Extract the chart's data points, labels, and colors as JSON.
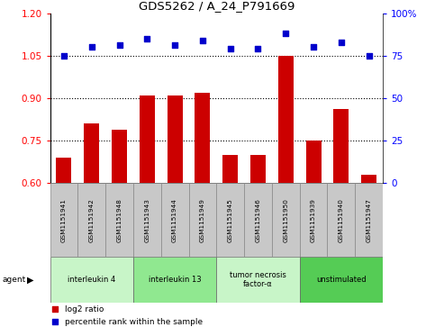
{
  "title": "GDS5262 / A_24_P791669",
  "samples": [
    "GSM1151941",
    "GSM1151942",
    "GSM1151948",
    "GSM1151943",
    "GSM1151944",
    "GSM1151949",
    "GSM1151945",
    "GSM1151946",
    "GSM1151950",
    "GSM1151939",
    "GSM1151940",
    "GSM1151947"
  ],
  "log2_ratio": [
    0.69,
    0.81,
    0.79,
    0.91,
    0.91,
    0.92,
    0.7,
    0.7,
    1.05,
    0.75,
    0.86,
    0.63
  ],
  "percentile_rank": [
    75,
    80,
    81,
    85,
    81,
    84,
    79,
    79,
    88,
    80,
    83,
    75
  ],
  "groups": [
    {
      "label": "interleukin 4",
      "indices": [
        0,
        1,
        2
      ],
      "color": "#c8f5c8"
    },
    {
      "label": "interleukin 13",
      "indices": [
        3,
        4,
        5
      ],
      "color": "#90e890"
    },
    {
      "label": "tumor necrosis\nfactor-α",
      "indices": [
        6,
        7,
        8
      ],
      "color": "#c8f5c8"
    },
    {
      "label": "unstimulated",
      "indices": [
        9,
        10,
        11
      ],
      "color": "#55cc55"
    }
  ],
  "ylim_left": [
    0.6,
    1.2
  ],
  "ylim_right": [
    0,
    100
  ],
  "yticks_left": [
    0.6,
    0.75,
    0.9,
    1.05,
    1.2
  ],
  "yticks_right": [
    0,
    25,
    50,
    75,
    100
  ],
  "hlines": [
    0.75,
    0.9,
    1.05
  ],
  "bar_color": "#cc0000",
  "scatter_color": "#0000cc",
  "bar_width": 0.55,
  "bar_bottom": 0.6,
  "sample_box_color": "#c8c8c8",
  "legend_items": [
    "log2 ratio",
    "percentile rank within the sample"
  ],
  "legend_colors": [
    "#cc0000",
    "#0000cc"
  ],
  "agent_label": "agent",
  "agent_arrow": "▶"
}
